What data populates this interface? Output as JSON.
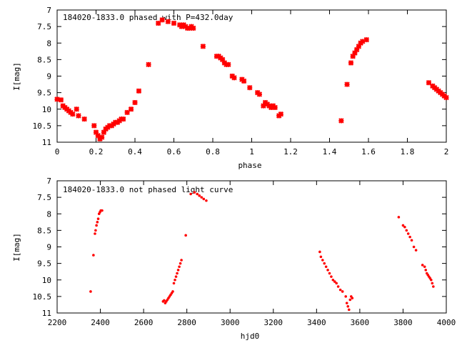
{
  "chart_data": [
    {
      "type": "scatter",
      "title": "184020-1833.0 phased with P=432.0day",
      "xlabel": "phase",
      "ylabel": "I[mag]",
      "xlim": [
        0,
        2
      ],
      "ylim": [
        11,
        7
      ],
      "y_inverted": true,
      "xticks": [
        0,
        0.2,
        0.4,
        0.6,
        0.8,
        1,
        1.2,
        1.4,
        1.6,
        1.8,
        2
      ],
      "xtick_labels": [
        "0",
        "0.2",
        "0.4",
        "0.6",
        "0.8",
        "1",
        "1.2",
        "1.4",
        "1.6",
        "1.8",
        "2"
      ],
      "yticks": [
        7,
        7.5,
        8,
        8.5,
        9,
        9.5,
        10,
        10.5,
        11
      ],
      "ytick_labels": [
        "7",
        "7.5",
        "8",
        "8.5",
        "9",
        "9.5",
        "10",
        "10.5",
        "11"
      ],
      "grid": false,
      "color": "#ff0000",
      "series": [
        {
          "x": [
            0.0,
            0.02,
            0.03,
            0.04,
            0.05,
            0.06,
            0.07,
            0.08,
            0.1,
            0.11,
            0.14,
            0.19,
            0.2,
            0.21,
            0.22,
            0.23,
            0.24,
            0.25,
            0.26,
            0.27,
            0.28,
            0.29,
            0.3,
            0.31,
            0.32,
            0.33,
            0.34,
            0.36,
            0.38,
            0.4,
            0.42,
            0.47,
            0.52,
            0.54,
            0.57,
            0.6,
            0.63,
            0.64,
            0.65,
            0.66,
            0.67,
            0.68,
            0.69,
            0.7,
            0.75,
            0.82,
            0.83,
            0.84,
            0.85,
            0.86,
            0.87,
            0.88,
            0.9,
            0.91,
            0.95,
            0.96,
            0.99,
            1.03,
            1.04,
            1.06,
            1.07,
            1.08,
            1.09,
            1.1,
            1.11,
            1.12,
            1.14,
            1.15,
            1.46,
            1.49,
            1.51,
            1.52,
            1.53,
            1.54,
            1.55,
            1.56,
            1.57,
            1.59,
            1.91,
            1.93,
            1.94,
            1.95,
            1.96,
            1.97,
            1.98,
            1.99,
            2.0
          ],
          "y": [
            9.7,
            9.72,
            9.9,
            9.95,
            10.0,
            10.05,
            10.1,
            10.15,
            10.0,
            10.2,
            10.3,
            10.5,
            10.7,
            10.8,
            10.9,
            10.85,
            10.7,
            10.6,
            10.55,
            10.5,
            10.5,
            10.45,
            10.4,
            10.4,
            10.35,
            10.3,
            10.3,
            10.1,
            10.0,
            9.8,
            9.45,
            8.65,
            7.4,
            7.3,
            7.35,
            7.4,
            7.45,
            7.5,
            7.45,
            7.5,
            7.55,
            7.55,
            7.5,
            7.55,
            8.1,
            8.4,
            8.4,
            8.45,
            8.5,
            8.6,
            8.65,
            8.65,
            9.0,
            9.05,
            9.1,
            9.15,
            9.35,
            9.5,
            9.55,
            9.9,
            9.8,
            9.85,
            9.9,
            9.95,
            9.9,
            9.95,
            10.2,
            10.15,
            10.35,
            9.25,
            8.6,
            8.4,
            8.3,
            8.2,
            8.1,
            8.0,
            7.95,
            7.9,
            9.2,
            9.3,
            9.35,
            9.4,
            9.45,
            9.5,
            9.55,
            9.6,
            9.65
          ]
        }
      ]
    },
    {
      "type": "scatter",
      "title": "184020-1833.0 not phased light curve",
      "xlabel": "hjd0",
      "ylabel": "I[mag]",
      "xlim": [
        2200,
        4000
      ],
      "ylim": [
        11,
        7
      ],
      "y_inverted": true,
      "xticks": [
        2200,
        2400,
        2600,
        2800,
        3000,
        3200,
        3400,
        3600,
        3800,
        4000
      ],
      "xtick_labels": [
        "2200",
        "2400",
        "2600",
        "2800",
        "3000",
        "3200",
        "3400",
        "3600",
        "3800",
        "4000"
      ],
      "yticks": [
        7,
        7.5,
        8,
        8.5,
        9,
        9.5,
        10,
        10.5,
        11
      ],
      "ytick_labels": [
        "7",
        "7.5",
        "8",
        "8.5",
        "9",
        "9.5",
        "10",
        "10.5",
        "11"
      ],
      "grid": false,
      "color": "#ff0000",
      "series": [
        {
          "x": [
            2355,
            2368,
            2375,
            2378,
            2382,
            2386,
            2390,
            2394,
            2398,
            2402,
            2408,
            2690,
            2695,
            2700,
            2705,
            2710,
            2715,
            2720,
            2725,
            2730,
            2735,
            2740,
            2745,
            2750,
            2755,
            2760,
            2765,
            2770,
            2775,
            2795,
            2818,
            2835,
            2848,
            2858,
            2868,
            2878,
            2890,
            3415,
            3420,
            3428,
            3436,
            3444,
            3452,
            3460,
            3468,
            3476,
            3484,
            3492,
            3500,
            3510,
            3520,
            3535,
            3540,
            3545,
            3550,
            3555,
            3560,
            3565,
            3780,
            3800,
            3808,
            3816,
            3824,
            3832,
            3840,
            3850,
            3860,
            3890,
            3900,
            3905,
            3910,
            3915,
            3920,
            3925,
            3930,
            3935,
            3940
          ],
          "y": [
            10.35,
            9.25,
            8.6,
            8.5,
            8.35,
            8.25,
            8.15,
            8.0,
            7.95,
            7.9,
            7.9,
            10.65,
            10.62,
            10.7,
            10.65,
            10.6,
            10.55,
            10.5,
            10.45,
            10.4,
            10.35,
            10.1,
            10.0,
            9.9,
            9.8,
            9.7,
            9.6,
            9.5,
            9.4,
            8.65,
            7.4,
            7.35,
            7.4,
            7.45,
            7.5,
            7.55,
            7.6,
            9.15,
            9.3,
            9.4,
            9.5,
            9.6,
            9.7,
            9.8,
            9.9,
            10.0,
            10.05,
            10.1,
            10.2,
            10.3,
            10.35,
            10.5,
            10.7,
            10.8,
            10.9,
            10.6,
            10.5,
            10.55,
            8.1,
            8.35,
            8.4,
            8.5,
            8.6,
            8.7,
            8.8,
            9.0,
            9.1,
            9.55,
            9.6,
            9.7,
            9.8,
            9.85,
            9.9,
            9.95,
            10.0,
            10.1,
            10.2
          ]
        }
      ]
    }
  ]
}
